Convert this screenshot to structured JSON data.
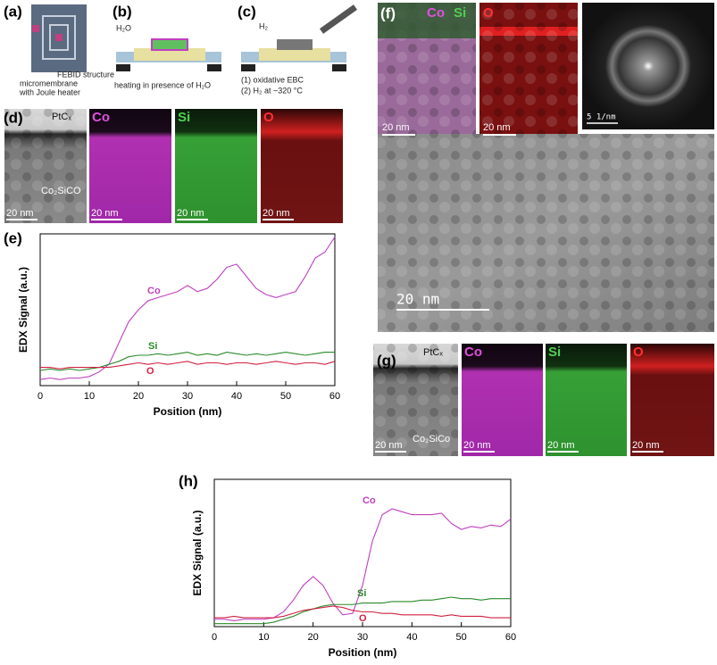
{
  "panel_labels": [
    "(a)",
    "(b)",
    "(c)",
    "(d)",
    "(e)",
    "(f)",
    "(g)",
    "(h)"
  ],
  "schematics": {
    "a_labels": [
      "FEBID structure",
      "micromembrane",
      "with Joule heater"
    ],
    "b_gas": "H₂O",
    "b_caption": "heating in presence of H₂O",
    "c_gas": "H₂",
    "c_steps": [
      "(1) oxidative EBC",
      "(2) H₂ at ~320 °C"
    ]
  },
  "maps": {
    "d": {
      "layer": "PtCₓ",
      "material": "Co₂SiCO",
      "elements": [
        "Co",
        "Si",
        "O"
      ],
      "scale": "20 nm"
    },
    "f": {
      "overlay": [
        "Co",
        "Si"
      ],
      "element": "O",
      "scale": "20 nm",
      "fft_scale": "5 1/nm",
      "hrtem_scale": "20 nm"
    },
    "g": {
      "layer": "PtCₓ",
      "material": "Co₂SiCo",
      "elements": [
        "Co",
        "Si",
        "O"
      ],
      "scale": "20 nm"
    }
  },
  "chart_data": [
    {
      "type": "line",
      "x_label": "Position (nm)",
      "y_label": "EDX Signal (a.u.)",
      "x": [
        0,
        2,
        4,
        6,
        8,
        10,
        12,
        14,
        16,
        18,
        20,
        22,
        24,
        26,
        28,
        30,
        32,
        34,
        36,
        38,
        40,
        42,
        44,
        46,
        48,
        50,
        52,
        54,
        56,
        58,
        60
      ],
      "xlim": [
        0,
        60
      ],
      "xticks": [
        0,
        10,
        20,
        30,
        40,
        50,
        60
      ],
      "ylim": [
        0,
        100
      ],
      "series": [
        {
          "name": "Co",
          "color": "#c040c0",
          "values": [
            4,
            5,
            4,
            5,
            5,
            6,
            9,
            14,
            28,
            42,
            50,
            56,
            58,
            60,
            62,
            66,
            62,
            64,
            70,
            78,
            80,
            72,
            64,
            60,
            58,
            60,
            62,
            72,
            84,
            88,
            98
          ]
        },
        {
          "name": "Si",
          "color": "#2a8a2a",
          "values": [
            10,
            11,
            10,
            11,
            10,
            11,
            12,
            14,
            16,
            19,
            20,
            20,
            21,
            20,
            21,
            22,
            20,
            21,
            20,
            22,
            21,
            20,
            21,
            20,
            21,
            22,
            21,
            20,
            21,
            22,
            22
          ]
        },
        {
          "name": "O",
          "color": "#d02040",
          "values": [
            12,
            12,
            11,
            12,
            12,
            12,
            12,
            12,
            13,
            14,
            15,
            14,
            15,
            14,
            15,
            16,
            14,
            15,
            15,
            14,
            15,
            15,
            14,
            15,
            16,
            15,
            14,
            15,
            15,
            14,
            16
          ]
        }
      ]
    },
    {
      "type": "line",
      "x_label": "Position (nm)",
      "y_label": "EDX Signal (a.u.)",
      "x": [
        0,
        2,
        4,
        6,
        8,
        10,
        12,
        14,
        16,
        18,
        20,
        22,
        24,
        26,
        28,
        30,
        32,
        34,
        36,
        38,
        40,
        42,
        44,
        46,
        48,
        50,
        52,
        54,
        56,
        58,
        60
      ],
      "xlim": [
        0,
        60
      ],
      "xticks": [
        0,
        10,
        20,
        30,
        40,
        50,
        60
      ],
      "ylim": [
        0,
        100
      ],
      "series": [
        {
          "name": "Co",
          "color": "#c040c0",
          "values": [
            5,
            5,
            4,
            5,
            5,
            5,
            6,
            10,
            18,
            28,
            34,
            28,
            16,
            8,
            9,
            28,
            58,
            76,
            80,
            78,
            76,
            76,
            76,
            77,
            70,
            66,
            68,
            67,
            69,
            68,
            73
          ]
        },
        {
          "name": "Si",
          "color": "#2a8a2a",
          "values": [
            2,
            2,
            2,
            2,
            2,
            2,
            3,
            5,
            7,
            10,
            12,
            14,
            15,
            15,
            15,
            16,
            16,
            16,
            17,
            17,
            17,
            18,
            18,
            19,
            20,
            19,
            19,
            18,
            19,
            19,
            19
          ]
        },
        {
          "name": "O",
          "color": "#d02040",
          "values": [
            6,
            6,
            7,
            6,
            6,
            6,
            6,
            7,
            9,
            11,
            12,
            13,
            14,
            13,
            11,
            10,
            10,
            9,
            9,
            8,
            8,
            8,
            8,
            7,
            8,
            7,
            7,
            7,
            6,
            6,
            6
          ]
        }
      ]
    }
  ]
}
